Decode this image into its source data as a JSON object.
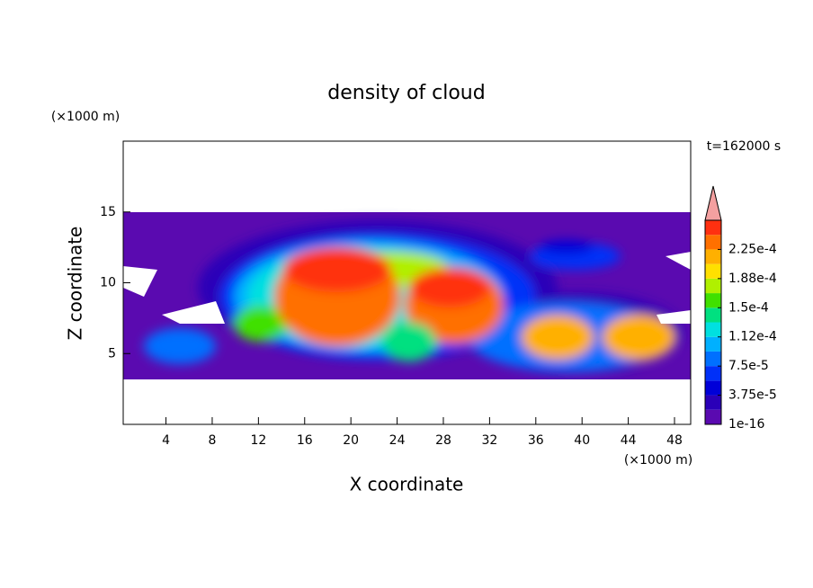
{
  "chart_data": {
    "type": "contour",
    "title": "density of cloud",
    "x_label": "X coordinate",
    "y_label": "Z coordinate",
    "x_unit": "(×1000 m)",
    "y_unit": "(×1000 m)",
    "time_label": "t=162000 s",
    "xlim": [
      0.3,
      49.4
    ],
    "ylim": [
      0,
      20
    ],
    "xticks": [
      4,
      8,
      12,
      16,
      20,
      24,
      28,
      32,
      36,
      40,
      44,
      48
    ],
    "yticks": [
      5,
      10,
      15
    ],
    "colorbar": {
      "ticks": [
        1e-16,
        {
          "value": 3.75e-05,
          "label": "3.75e-5"
        },
        {
          "value": 7.5e-05,
          "label": "7.5e-5"
        },
        {
          "value": 0.000112,
          "label": "1.12e-4"
        },
        {
          "value": 0.00015,
          "label": "1.5e-4"
        },
        {
          "value": 0.000188,
          "label": "1.88e-4"
        },
        {
          "value": 0.000225,
          "label": "2.25e-4"
        }
      ],
      "colors": [
        "#5a0ab0",
        "#2a00b8",
        "#0000d8",
        "#0030f8",
        "#0070ff",
        "#00b0ff",
        "#00e0e0",
        "#00e080",
        "#40e000",
        "#b0f000",
        "#ffe000",
        "#ffb000",
        "#ff7000",
        "#ff3010"
      ],
      "over_color": "#f4a0a0"
    }
  }
}
